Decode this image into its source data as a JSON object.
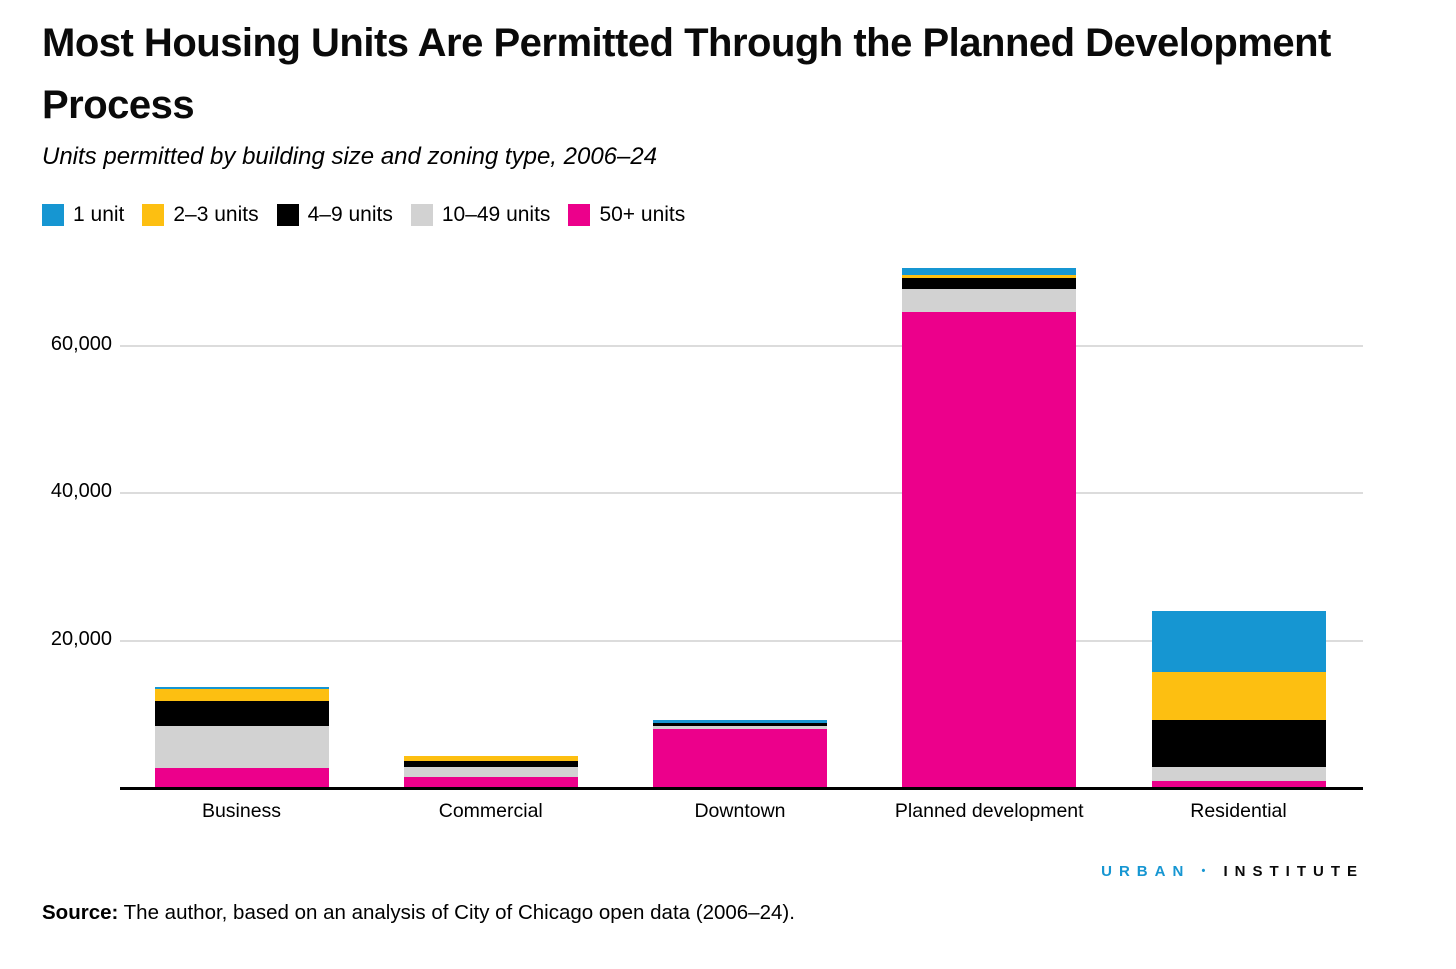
{
  "header": {
    "title": "Most Housing Units Are Permitted Through the Planned Development Process",
    "subtitle": "Units permitted by building size and zoning type, 2006–24"
  },
  "chart_data": {
    "type": "bar",
    "stacked": true,
    "title": "Most Housing Units Are Permitted Through the Planned Development Process",
    "subtitle": "Units permitted by building size and zoning type, 2006–24",
    "categories": [
      "Business",
      "Commercial",
      "Downtown",
      "Planned development",
      "Residential"
    ],
    "series": [
      {
        "name": "1 unit",
        "color": "#1696d2",
        "values": [
          300,
          0,
          450,
          1000,
          8300
        ]
      },
      {
        "name": "2–3 units",
        "color": "#fdbf11",
        "values": [
          1600,
          600,
          0,
          400,
          6500
        ]
      },
      {
        "name": "4–9 units",
        "color": "#000000",
        "values": [
          3400,
          900,
          400,
          1500,
          6300
        ]
      },
      {
        "name": "10–49 units",
        "color": "#d2d2d2",
        "values": [
          5700,
          1300,
          350,
          3000,
          2000
        ]
      },
      {
        "name": "50+ units",
        "color": "#ec008b",
        "values": [
          2700,
          1500,
          8000,
          64600,
          900
        ]
      }
    ],
    "stack_order_bottom_to_top": [
      "50+ units",
      "10–49 units",
      "4–9 units",
      "2–3 units",
      "1 unit"
    ],
    "totals": [
      13700,
      4300,
      9200,
      70500,
      24000
    ],
    "y_ticks": [
      20000,
      40000,
      60000
    ],
    "y_tick_labels": [
      "20,000",
      "40,000",
      "60,000"
    ],
    "ylim": [
      0,
      72000
    ],
    "xlabel": "",
    "ylabel": "",
    "grid": "horizontal",
    "legend_position": "top-left"
  },
  "colors": {
    "accent_blue": "#1696d2",
    "accent_yellow": "#fdbf11",
    "accent_black": "#000000",
    "accent_gray": "#d2d2d2",
    "accent_magenta": "#ec008b",
    "gridline": "#dcdcdc",
    "axis": "#000000"
  },
  "footer": {
    "logo_left": "URBAN",
    "logo_separator": "•",
    "logo_right": "INSTITUTE",
    "source_label": "Source:",
    "source_text": " The author, based on an analysis of City of Chicago open data (2006–24)."
  }
}
